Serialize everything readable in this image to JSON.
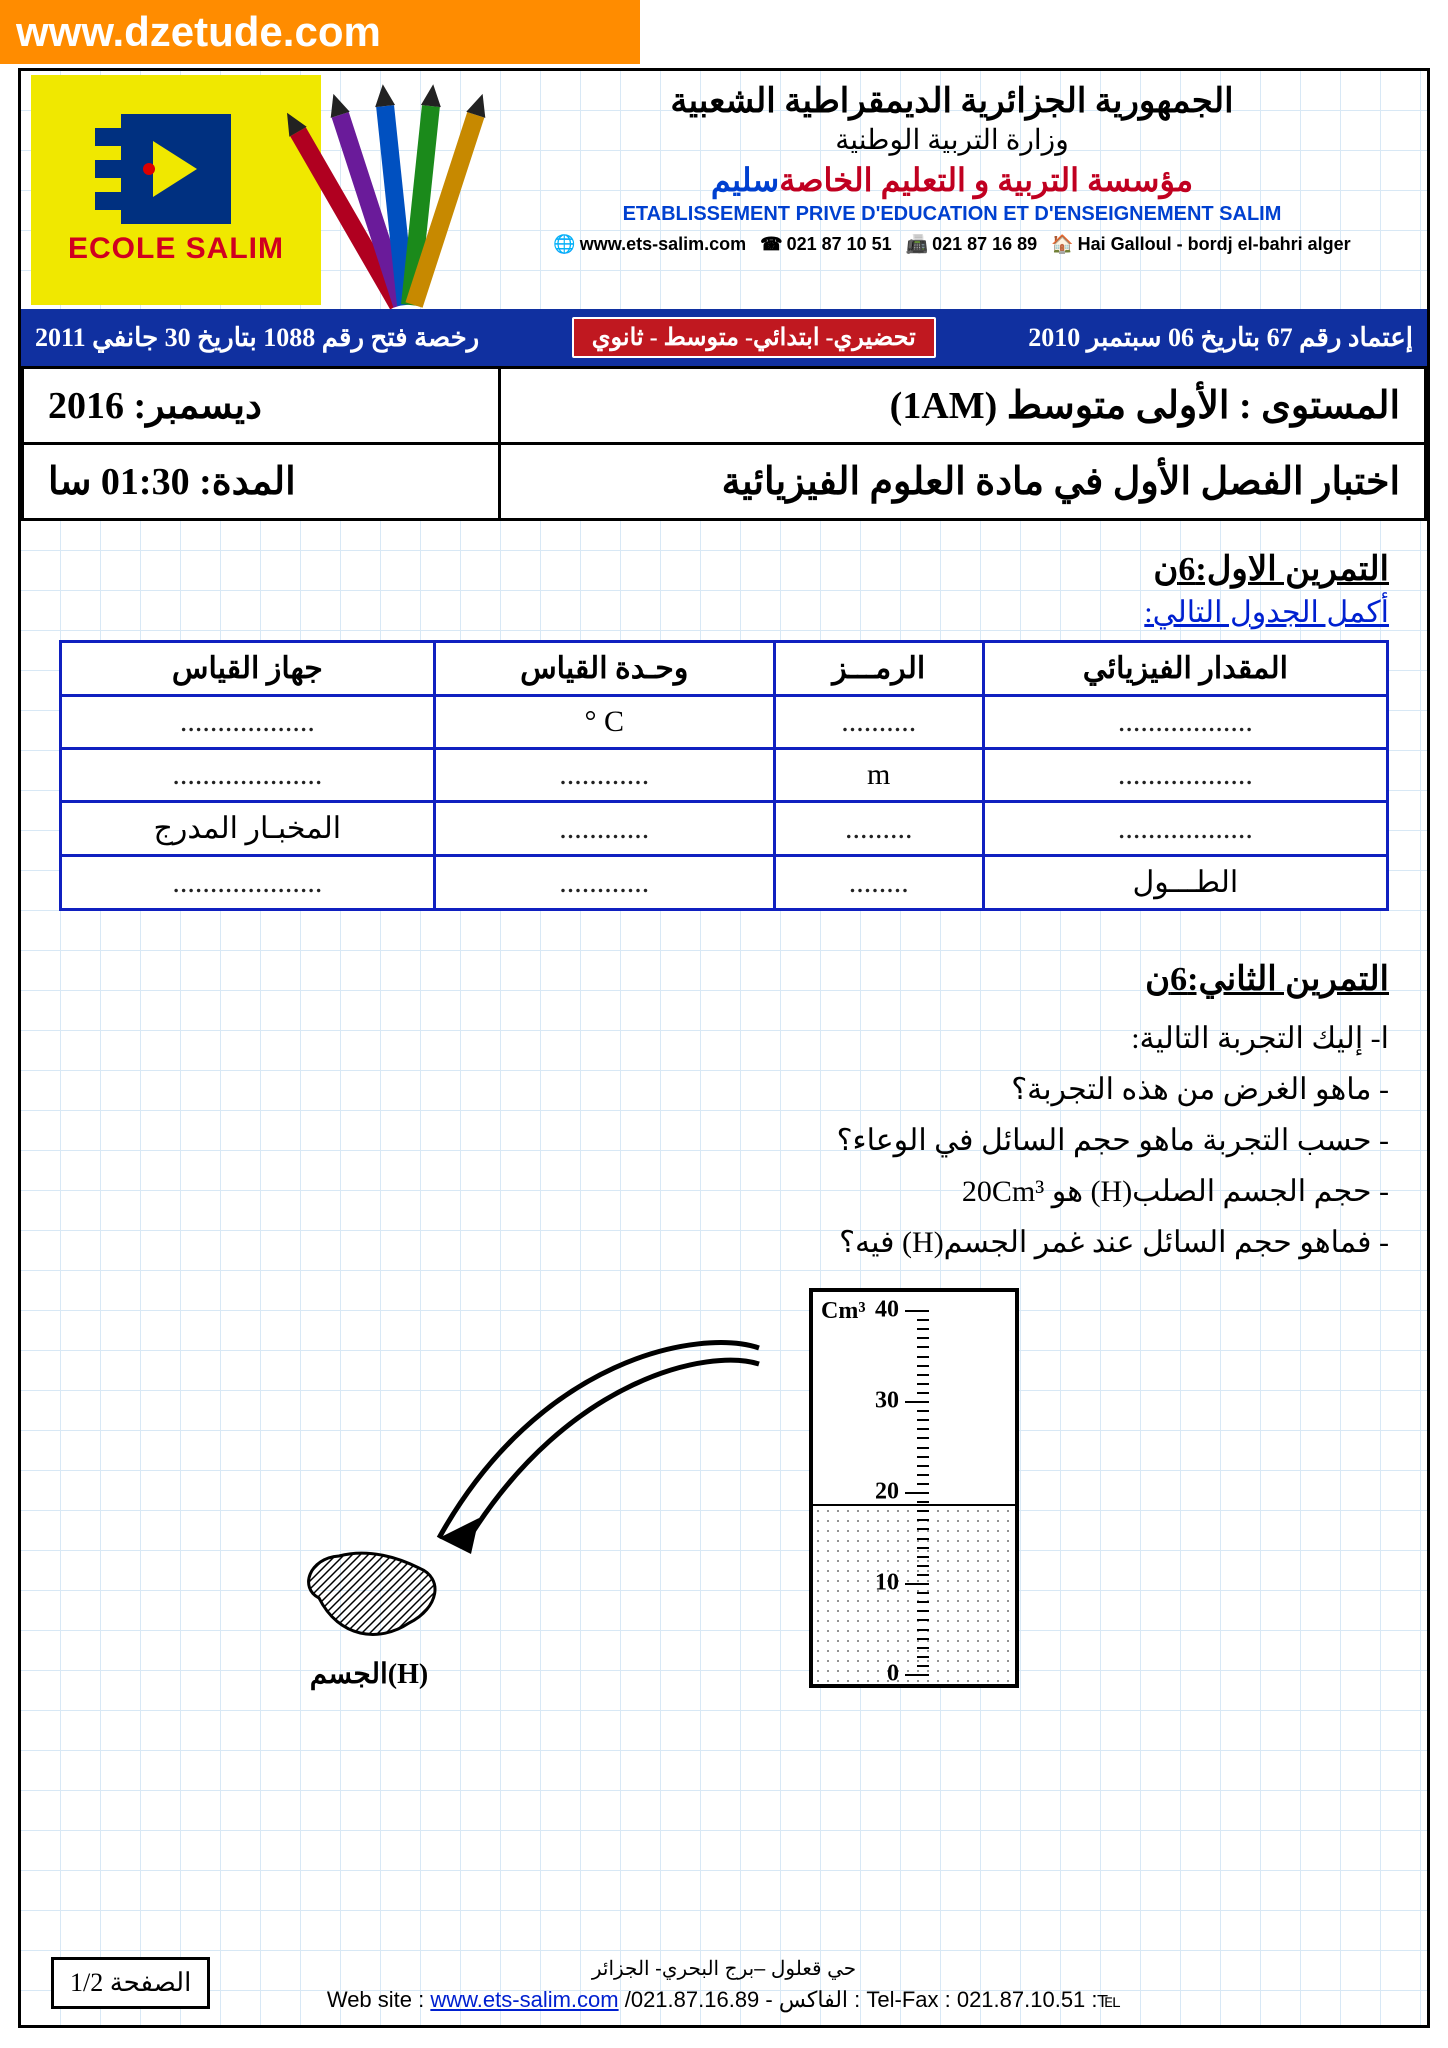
{
  "watermark": "www.dzetude.com",
  "logo_text": "ECOLE SALIM",
  "pencil_colors": [
    "#b00020",
    "#6a1b9a",
    "#0050c0",
    "#1b8a1b",
    "#c78900"
  ],
  "header": {
    "line1": "الجمهورية الجزائرية الديمقراطية الشعبية",
    "line2": "وزارة التربية الوطنية",
    "line3_pre": "مؤسسة التربية و التعليم الخاصة",
    "line3_salim": "سليم",
    "line4": "ETABLISSEMENT PRIVE D'EDUCATION ET D'ENSEIGNEMENT SALIM",
    "contacts": {
      "web": "www.ets-salim.com",
      "phone1": "021 87 10 51",
      "phone2": "021 87 16 89",
      "addr": "Hai Galloul - bordj el-bahri alger"
    }
  },
  "blue_bar": {
    "right": "إعتماد رقم 67 بتاريخ 06 سبتمبر 2010",
    "center": "تحضيري- ابتدائي- متوسط - ثانوي",
    "left": "رخصة فتح رقم 1088 بتاريخ 30 جانفي 2011"
  },
  "info": {
    "level_label": "المستوى :",
    "level_value": "الأولى متوسط (1AM)",
    "date": "ديسمبر: 2016",
    "subject": "اختبار الفصل الأول في مادة العلوم الفيزيائية",
    "duration_label": "المدة:",
    "duration_value": "01:30 سا"
  },
  "ex1": {
    "title": "التمرين الاول:6ن",
    "instruction": "أكمل الجدول التالي:",
    "headers": [
      "المقدار الفيزيائي",
      "الرمـــز",
      "وحـدة القياس",
      "جهاز القياس"
    ],
    "rows": [
      [
        "..................",
        "..........",
        "C °",
        ".................."
      ],
      [
        "..................",
        "m",
        "............",
        "...................."
      ],
      [
        "..................",
        ".........",
        "............",
        "المخبـار المدرج"
      ],
      [
        "الطـــول",
        "........",
        "............",
        "...................."
      ]
    ]
  },
  "ex2": {
    "title": "التمرين الثاني:6ن",
    "q_intro": "ا- إليك التجربة التالية:",
    "q1": "- ماهو الغرض من هذه التجربة؟",
    "q2": "- حسب التجربة ماهو حجم السائل في الوعاء؟",
    "q3_pre": "- حجم الجسم الصلب(H) هو ",
    "q3_val": "20Cm³",
    "q4": "- فماهو حجم السائل عند غمر الجسم(H) فيه؟",
    "cyl_unit": "Cm³",
    "ticks": [
      "40",
      "30",
      "20",
      "10",
      "0"
    ],
    "body_label": "الجسم(H)"
  },
  "footer": {
    "addr": "حي قعلول –برج البحري- الجزائر",
    "line_pre": "Web site : ",
    "site": "www.ets-salim.com",
    "phone_a": " /021.87.16.89 ",
    "fax_label": "- الفاكس :",
    "fax_pre": " Tel-Fax : 021.87.10.51 :",
    "icon": "℡"
  },
  "page_num": "الصفحة 1/2"
}
